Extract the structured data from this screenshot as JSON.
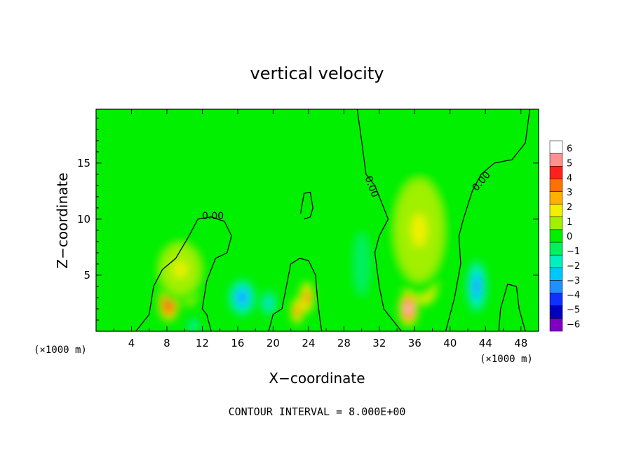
{
  "chart_data": {
    "type": "heatmap",
    "title": "vertical velocity",
    "xlabel": "X−coordinate",
    "ylabel": "Z−coordinate",
    "x_units_label": "(×1000 m)",
    "x_units_label_left": "(×1000 m)",
    "footer": "CONTOUR INTERVAL = 8.000E+00",
    "xlim": [
      0,
      50
    ],
    "ylim": [
      0,
      19.8
    ],
    "x_ticks": [
      4,
      8,
      12,
      16,
      20,
      24,
      28,
      32,
      36,
      40,
      44,
      48
    ],
    "x_tick_labels": [
      "4",
      "8",
      "12",
      "16",
      "20",
      "24",
      "28",
      "32",
      "36",
      "40",
      "44",
      "48"
    ],
    "y_ticks": [
      5,
      10,
      15
    ],
    "y_tick_labels": [
      "5",
      "10",
      "15"
    ],
    "colorbar": {
      "levels": [
        6,
        5,
        4,
        3,
        2,
        1,
        0,
        -1,
        -2,
        -3,
        -4,
        -5,
        -6
      ],
      "labels": [
        "6",
        "5",
        "4",
        "3",
        "2",
        "1",
        "0",
        "−1",
        "−2",
        "−3",
        "−4",
        "−5",
        "−6"
      ],
      "colors": [
        "#ffffff",
        "#ff9090",
        "#ff2020",
        "#ff7000",
        "#ffb000",
        "#f0f000",
        "#a0f000",
        "#00f000",
        "#00f060",
        "#00f0c0",
        "#00c8ff",
        "#2090ff",
        "#1030ff",
        "#0000c0",
        "#8000c0"
      ]
    },
    "contour_label": "0.00",
    "features": [
      {
        "x": 8.2,
        "z": 2.5,
        "value": 4.5,
        "sx": 1.0,
        "sz": 1.4
      },
      {
        "x": 10.5,
        "z": 4.0,
        "value": 4.0,
        "sx": 1.0,
        "sz": 1.5
      },
      {
        "x": 9.5,
        "z": 5.5,
        "value": 1.5,
        "sx": 2.5,
        "sz": 2.5
      },
      {
        "x": 16.5,
        "z": 3.0,
        "value": -3.5,
        "sx": 1.3,
        "sz": 1.4
      },
      {
        "x": 19.5,
        "z": 2.5,
        "value": -2.5,
        "sx": 0.8,
        "sz": 1.0
      },
      {
        "x": 22.7,
        "z": 1.8,
        "value": 4.0,
        "sx": 0.6,
        "sz": 1.0
      },
      {
        "x": 23.8,
        "z": 3.0,
        "value": 4.0,
        "sx": 0.7,
        "sz": 1.2
      },
      {
        "x": 35.3,
        "z": 2.0,
        "value": 6.0,
        "sx": 0.9,
        "sz": 1.3
      },
      {
        "x": 37.2,
        "z": 5.0,
        "value": 5.5,
        "sx": 1.3,
        "sz": 2.2
      },
      {
        "x": 36.5,
        "z": 9.0,
        "value": 1.5,
        "sx": 3.0,
        "sz": 5.0
      },
      {
        "x": 43.0,
        "z": 4.0,
        "value": -3.5,
        "sx": 1.0,
        "sz": 2.0
      },
      {
        "x": 30.0,
        "z": 6.0,
        "value": -1.0,
        "sx": 1.0,
        "sz": 3.0
      },
      {
        "x": 11.0,
        "z": 0.5,
        "value": -2.5,
        "sx": 0.5,
        "sz": 0.6
      }
    ]
  }
}
